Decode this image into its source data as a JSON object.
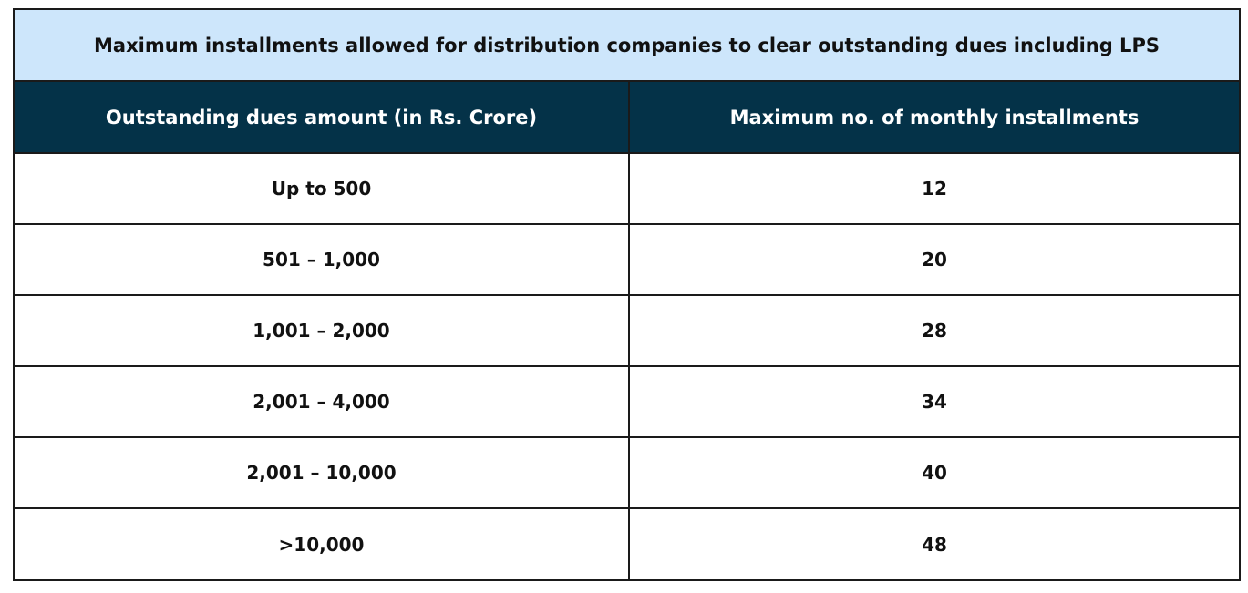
{
  "table": {
    "title": "Maximum installments allowed for distribution companies to clear outstanding dues including LPS",
    "headers": [
      "Outstanding dues amount (in Rs. Crore)",
      "Maximum no. of monthly installments"
    ],
    "rows": [
      {
        "amount": "Up to 500",
        "installments": "12"
      },
      {
        "amount": "501 – 1,000",
        "installments": "20"
      },
      {
        "amount": "1,001 – 2,000",
        "installments": "28"
      },
      {
        "amount": "2,001 – 4,000",
        "installments": "34"
      },
      {
        "amount": "2,001 – 10,000",
        "installments": "40"
      },
      {
        "amount": ">10,000",
        "installments": "48"
      }
    ]
  },
  "colors": {
    "title_background": "#cde6fb",
    "header_background": "#043248",
    "header_text": "#ffffff",
    "border": "#1a1a1a"
  }
}
